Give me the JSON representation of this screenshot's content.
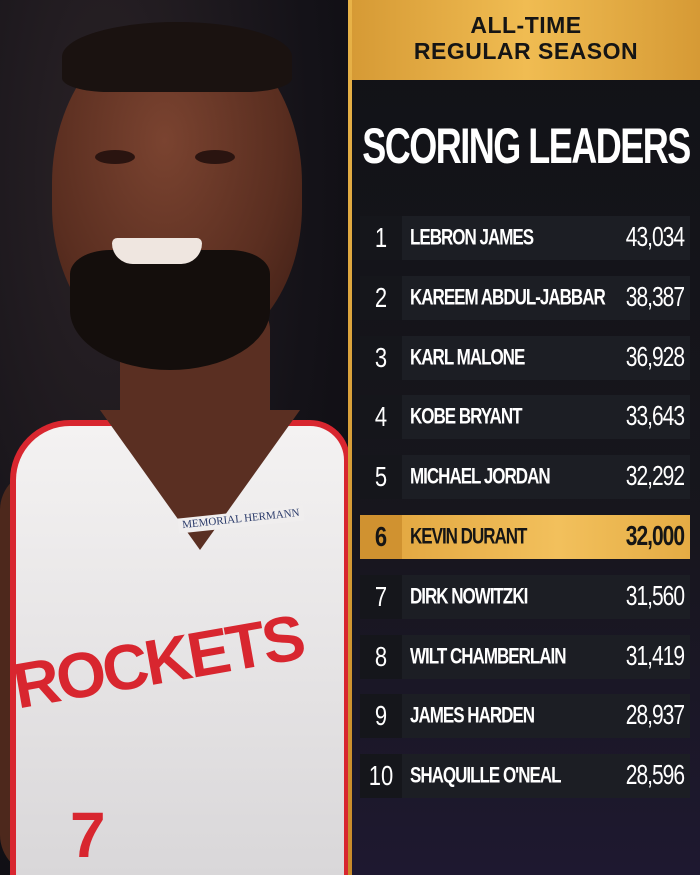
{
  "photo": {
    "jersey_text": "ROCKETS",
    "sponsor": "MEMORIAL HERMANN",
    "jersey_number": "7"
  },
  "header": {
    "line1": "ALL-TIME",
    "line2": "REGULAR SEASON",
    "title": "SCORING LEADERS"
  },
  "colors": {
    "gold": "#f0bc52",
    "panel": "#111216",
    "row": "#1c1e24",
    "jersey_red": "#d8262f"
  },
  "leaders": [
    {
      "rank": "1",
      "name": "LEBRON JAMES",
      "points": "43,034"
    },
    {
      "rank": "2",
      "name": "KAREEM ABDUL-JABBAR",
      "points": "38,387"
    },
    {
      "rank": "3",
      "name": "KARL MALONE",
      "points": "36,928"
    },
    {
      "rank": "4",
      "name": "KOBE BRYANT",
      "points": "33,643"
    },
    {
      "rank": "5",
      "name": "MICHAEL JORDAN",
      "points": "32,292"
    },
    {
      "rank": "6",
      "name": "KEVIN DURANT",
      "points": "32,000",
      "highlighted": true
    },
    {
      "rank": "7",
      "name": "DIRK NOWITZKI",
      "points": "31,560"
    },
    {
      "rank": "8",
      "name": "WILT CHAMBERLAIN",
      "points": "31,419"
    },
    {
      "rank": "9",
      "name": "JAMES HARDEN",
      "points": "28,937"
    },
    {
      "rank": "10",
      "name": "SHAQUILLE O'NEAL",
      "points": "28,596"
    }
  ]
}
